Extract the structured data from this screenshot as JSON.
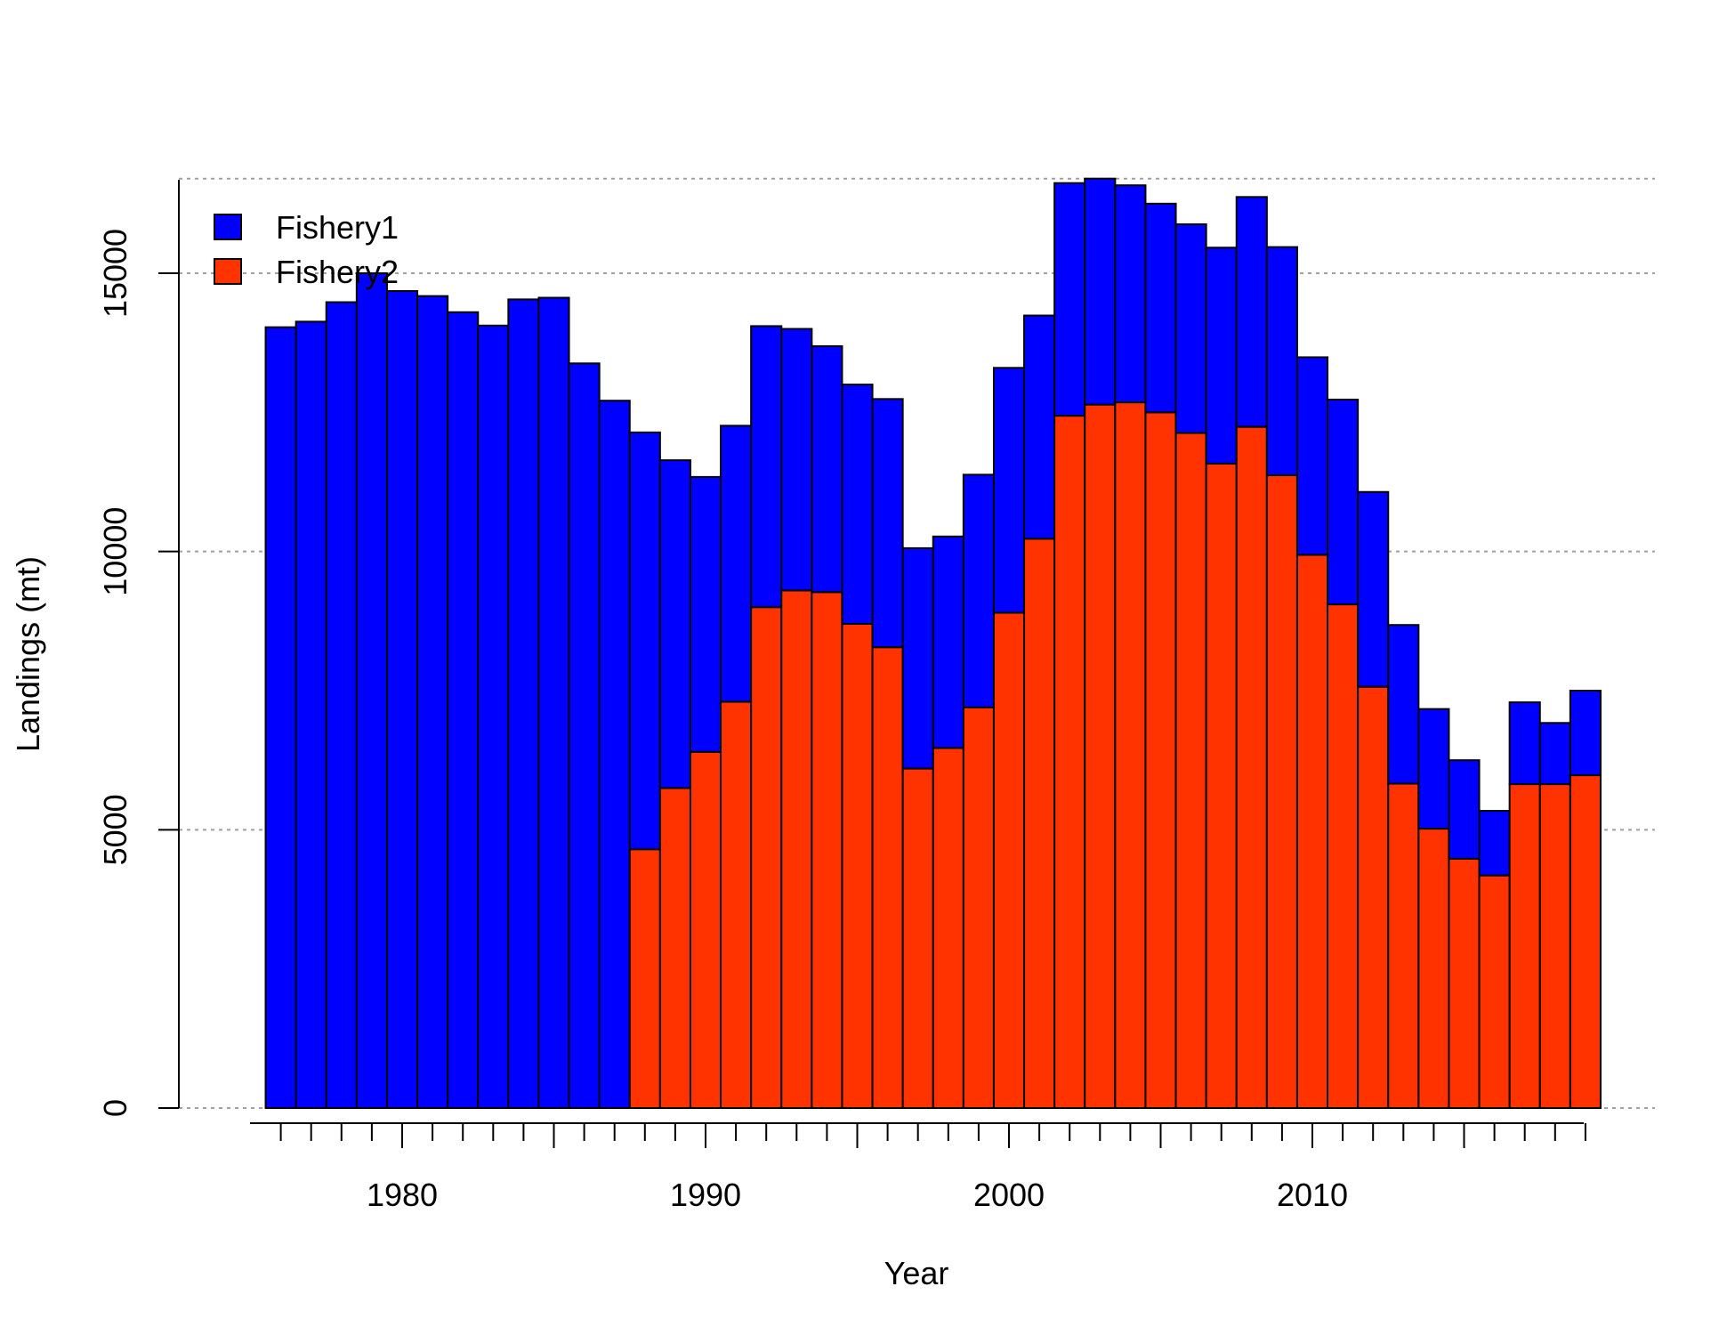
{
  "chart_data": {
    "type": "bar",
    "stacked": true,
    "title": "",
    "xlabel": "Year",
    "ylabel": "Landings (mt)",
    "x": [
      1976,
      1977,
      1978,
      1979,
      1980,
      1981,
      1982,
      1983,
      1984,
      1985,
      1986,
      1987,
      1988,
      1989,
      1990,
      1991,
      1992,
      1993,
      1994,
      1995,
      1996,
      1997,
      1998,
      1999,
      2000,
      2001,
      2002,
      2003,
      2004,
      2005,
      2006,
      2007,
      2008,
      2009,
      2010,
      2011,
      2012,
      2013,
      2014,
      2015,
      2016,
      2017,
      2018,
      2019
    ],
    "series": [
      {
        "name": "Fishery2",
        "color": "#ff3300",
        "values": [
          0,
          0,
          0,
          0,
          0,
          0,
          0,
          0,
          0,
          0,
          0,
          0,
          4650,
          5750,
          6400,
          7300,
          9000,
          9300,
          9270,
          8700,
          8280,
          6100,
          6470,
          7200,
          8900,
          10230,
          12440,
          12640,
          12680,
          12500,
          12130,
          11580,
          12240,
          11370,
          9940,
          9050,
          7570,
          5830,
          5020,
          4480,
          4180,
          5820,
          5820,
          5980
        ]
      },
      {
        "name": "Fishery1",
        "color": "#0000ff",
        "values": [
          14030,
          14130,
          14480,
          15000,
          14680,
          14590,
          14300,
          14060,
          14530,
          14560,
          13380,
          12710,
          7490,
          5890,
          4940,
          4960,
          5050,
          4700,
          4420,
          4300,
          4460,
          3960,
          3800,
          4180,
          4400,
          4010,
          4180,
          4060,
          3900,
          3750,
          3750,
          3880,
          4130,
          4100,
          3550,
          3680,
          3500,
          2850,
          2150,
          1770,
          1160,
          1470,
          1100,
          1520
        ]
      }
    ],
    "yticks": [
      0,
      5000,
      10000,
      15000
    ],
    "xticks": [
      1980,
      1990,
      2000,
      2010
    ],
    "ylim": [
      0,
      16700
    ],
    "xlim": [
      1975.3,
      2019.8
    ],
    "grid": "horizontal dotted",
    "legend_position": "top-left"
  }
}
